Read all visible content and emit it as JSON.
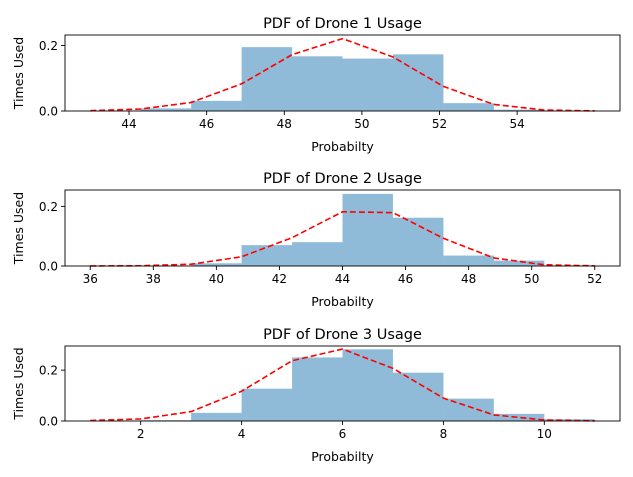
{
  "chart_data": [
    {
      "type": "bar",
      "title": "PDF of Drone 1 Usage",
      "xlabel": "Probabilty",
      "ylabel": "Times Used",
      "xlim": [
        42.35,
        56.65
      ],
      "ylim": [
        0,
        0.232
      ],
      "xticks": [
        44,
        46,
        48,
        50,
        52,
        54
      ],
      "yticks": [
        0.0,
        0.2
      ],
      "bins": [
        {
          "x0": 43.0,
          "x1": 44.3,
          "value": 0.0
        },
        {
          "x0": 44.3,
          "x1": 45.6,
          "value": 0.008
        },
        {
          "x0": 45.6,
          "x1": 46.9,
          "value": 0.031
        },
        {
          "x0": 46.9,
          "x1": 48.2,
          "value": 0.195
        },
        {
          "x0": 48.2,
          "x1": 49.5,
          "value": 0.167
        },
        {
          "x0": 49.5,
          "x1": 50.8,
          "value": 0.16
        },
        {
          "x0": 50.8,
          "x1": 52.1,
          "value": 0.173
        },
        {
          "x0": 52.1,
          "x1": 53.4,
          "value": 0.024
        },
        {
          "x0": 53.4,
          "x1": 54.7,
          "value": 0.004
        },
        {
          "x0": 54.7,
          "x1": 56.0,
          "value": 0.0
        }
      ],
      "curve": {
        "x": [
          43.0,
          44.3,
          45.6,
          46.9,
          48.2,
          49.5,
          50.8,
          52.1,
          53.4,
          54.7,
          56.0
        ],
        "y": [
          0.001,
          0.006,
          0.026,
          0.083,
          0.172,
          0.221,
          0.165,
          0.075,
          0.02,
          0.003,
          0.0003
        ]
      },
      "colors": {
        "bar": "#1f77b4",
        "curve": "#ff0000"
      }
    },
    {
      "type": "bar",
      "title": "PDF of Drone 2 Usage",
      "xlabel": "Probabilty",
      "ylabel": "Times Used",
      "xlim": [
        35.2,
        52.8
      ],
      "ylim": [
        0,
        0.255
      ],
      "xticks": [
        36,
        38,
        40,
        42,
        44,
        46,
        48,
        50,
        52
      ],
      "yticks": [
        0.0,
        0.2
      ],
      "bins": [
        {
          "x0": 36.0,
          "x1": 37.6,
          "value": 0.0
        },
        {
          "x0": 37.6,
          "x1": 39.2,
          "value": 0.0
        },
        {
          "x0": 39.2,
          "x1": 40.8,
          "value": 0.009
        },
        {
          "x0": 40.8,
          "x1": 42.4,
          "value": 0.07
        },
        {
          "x0": 42.4,
          "x1": 44.0,
          "value": 0.08
        },
        {
          "x0": 44.0,
          "x1": 45.6,
          "value": 0.242
        },
        {
          "x0": 45.6,
          "x1": 47.2,
          "value": 0.162
        },
        {
          "x0": 47.2,
          "x1": 48.8,
          "value": 0.035
        },
        {
          "x0": 48.8,
          "x1": 50.4,
          "value": 0.018
        },
        {
          "x0": 50.4,
          "x1": 52.0,
          "value": 0.002
        }
      ],
      "curve": {
        "x": [
          36.0,
          37.6,
          39.2,
          40.8,
          42.4,
          44.0,
          45.6,
          47.2,
          48.8,
          50.4,
          52.0
        ],
        "y": [
          0.0002,
          0.0009,
          0.006,
          0.031,
          0.095,
          0.182,
          0.179,
          0.093,
          0.027,
          0.004,
          0.0005
        ]
      },
      "colors": {
        "bar": "#1f77b4",
        "curve": "#ff0000"
      }
    },
    {
      "type": "bar",
      "title": "PDF of Drone 3 Usage",
      "xlabel": "Probabilty",
      "ylabel": "Times Used",
      "xlim": [
        0.5,
        11.5
      ],
      "ylim": [
        0,
        0.295
      ],
      "xticks": [
        2,
        4,
        6,
        8,
        10
      ],
      "yticks": [
        0.0,
        0.2
      ],
      "bins": [
        {
          "x0": 1.0,
          "x1": 2.0,
          "value": 0.0
        },
        {
          "x0": 2.0,
          "x1": 3.0,
          "value": 0.003
        },
        {
          "x0": 3.0,
          "x1": 4.0,
          "value": 0.032
        },
        {
          "x0": 4.0,
          "x1": 5.0,
          "value": 0.127
        },
        {
          "x0": 5.0,
          "x1": 6.0,
          "value": 0.25
        },
        {
          "x0": 6.0,
          "x1": 7.0,
          "value": 0.282
        },
        {
          "x0": 7.0,
          "x1": 8.0,
          "value": 0.19
        },
        {
          "x0": 8.0,
          "x1": 9.0,
          "value": 0.088
        },
        {
          "x0": 9.0,
          "x1": 10.0,
          "value": 0.028
        },
        {
          "x0": 10.0,
          "x1": 11.0,
          "value": 0.007
        }
      ],
      "curve": {
        "x": [
          1,
          2,
          3,
          4,
          5,
          6,
          7,
          8,
          9,
          10,
          11
        ],
        "y": [
          0.002,
          0.008,
          0.037,
          0.117,
          0.237,
          0.283,
          0.207,
          0.09,
          0.024,
          0.004,
          0.0004
        ]
      },
      "colors": {
        "bar": "#1f77b4",
        "curve": "#ff0000"
      }
    }
  ]
}
